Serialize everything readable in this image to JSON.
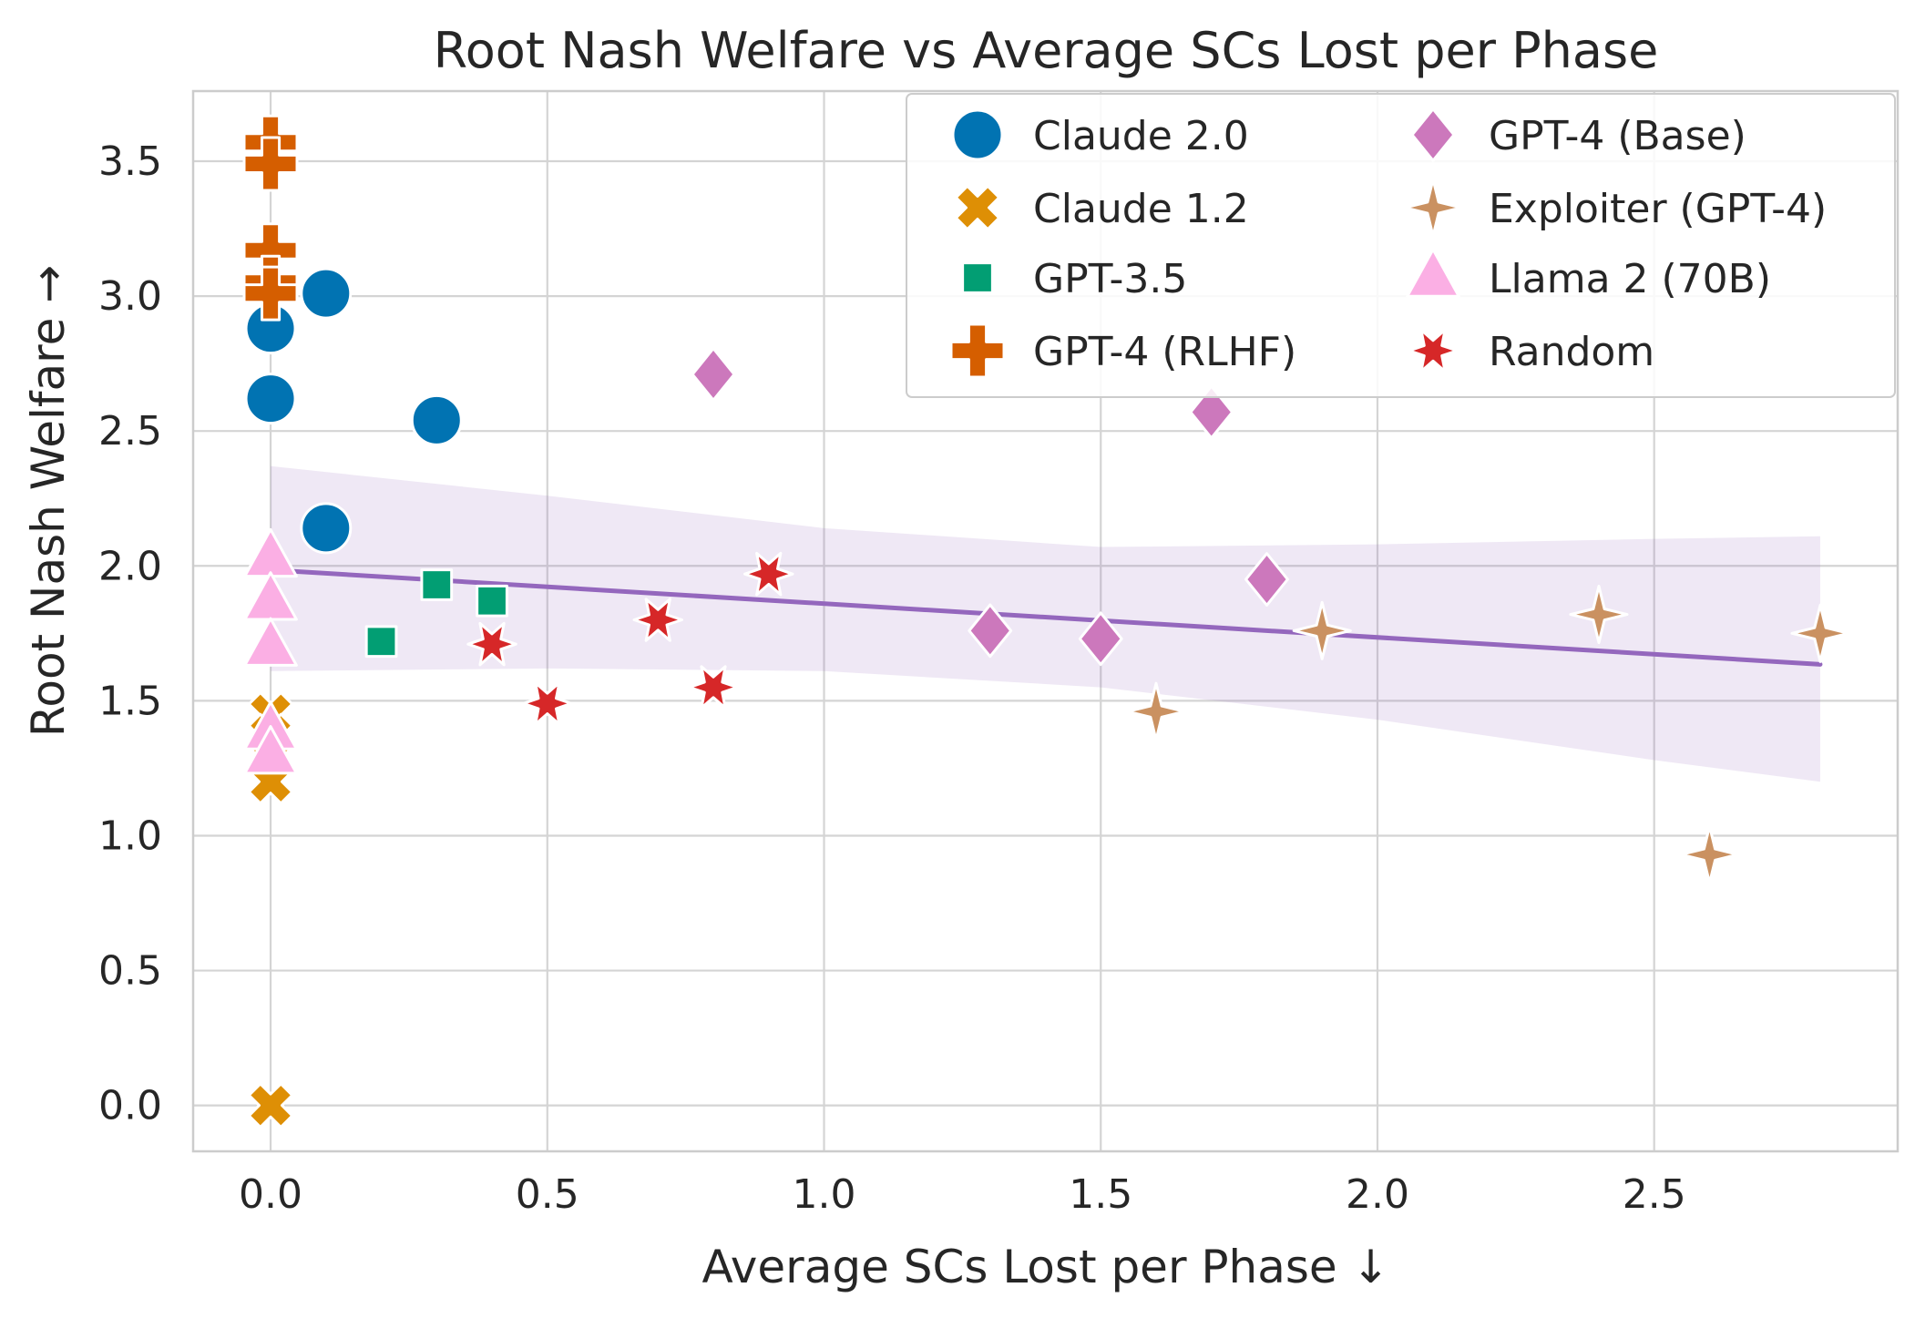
{
  "chart_data": {
    "type": "scatter",
    "title": "Root Nash Welfare vs Average SCs Lost per Phase",
    "xlabel": "Average SCs Lost per Phase ↓",
    "ylabel": "Root Nash Welfare →",
    "xlim": [
      -0.14,
      2.94
    ],
    "ylim": [
      -0.17,
      3.76
    ],
    "xticks": [
      0.0,
      0.5,
      1.0,
      1.5,
      2.0,
      2.5
    ],
    "xtick_labels": [
      "0.0",
      "0.5",
      "1.0",
      "1.5",
      "2.0",
      "2.5"
    ],
    "yticks": [
      0.0,
      0.5,
      1.0,
      1.5,
      2.0,
      2.5,
      3.0,
      3.5
    ],
    "ytick_labels": [
      "0.0",
      "0.5",
      "1.0",
      "1.5",
      "2.0",
      "2.5",
      "3.0",
      "3.5"
    ],
    "grid": true,
    "legend_position": "top-right",
    "legend_columns": 2,
    "series": [
      {
        "name": "Claude 2.0",
        "marker": "circle",
        "color": "#0173b2",
        "x": [
          0.0,
          0.0,
          0.1,
          0.3,
          0.1
        ],
        "y": [
          2.88,
          2.62,
          3.01,
          2.54,
          2.14
        ]
      },
      {
        "name": "Claude 1.2",
        "marker": "x",
        "color": "#de8f05",
        "x": [
          0.0,
          0.0,
          0.0,
          0.0,
          0.0
        ],
        "y": [
          1.45,
          1.37,
          1.29,
          1.2,
          0.0
        ]
      },
      {
        "name": "GPT-3.5",
        "marker": "square",
        "color": "#029e73",
        "x": [
          0.2,
          0.3,
          0.4
        ],
        "y": [
          1.72,
          1.93,
          1.87
        ]
      },
      {
        "name": "GPT-4 (RLHF)",
        "marker": "plus",
        "color": "#d55e00",
        "x": [
          0.0,
          0.0,
          0.0,
          0.0,
          0.0
        ],
        "y": [
          3.57,
          3.49,
          3.17,
          3.05,
          3.01
        ]
      },
      {
        "name": "GPT-4 (Base)",
        "marker": "diamond",
        "color": "#cc78bc",
        "x": [
          0.8,
          1.7,
          1.8,
          1.3,
          1.5
        ],
        "y": [
          2.71,
          2.57,
          1.95,
          1.76,
          1.73
        ]
      },
      {
        "name": "Exploiter (GPT-4)",
        "marker": "star4",
        "color": "#ca9161",
        "x": [
          1.6,
          1.9,
          2.4,
          2.8,
          2.6
        ],
        "y": [
          1.46,
          1.76,
          1.82,
          1.75,
          0.93
        ]
      },
      {
        "name": "Llama 2 (70B)",
        "marker": "triangle",
        "color": "#fbafe4",
        "x": [
          0.0,
          0.0,
          0.0,
          0.0,
          0.0
        ],
        "y": [
          2.03,
          1.87,
          1.7,
          1.39,
          1.3
        ]
      },
      {
        "name": "Random",
        "marker": "star",
        "color": "#d62728",
        "x": [
          0.4,
          0.5,
          0.7,
          0.8,
          0.9
        ],
        "y": [
          1.71,
          1.49,
          1.8,
          1.55,
          1.97
        ]
      }
    ],
    "regression": {
      "color": "#9467bd",
      "x": [
        0.0,
        2.8
      ],
      "y": [
        1.985,
        1.635
      ],
      "ci_band": {
        "x": [
          0.0,
          0.5,
          1.0,
          1.5,
          2.0,
          2.5,
          2.8
        ],
        "upper": [
          2.37,
          2.26,
          2.14,
          2.07,
          2.08,
          2.1,
          2.11
        ],
        "lower": [
          1.61,
          1.62,
          1.61,
          1.55,
          1.43,
          1.28,
          1.2
        ]
      }
    }
  }
}
